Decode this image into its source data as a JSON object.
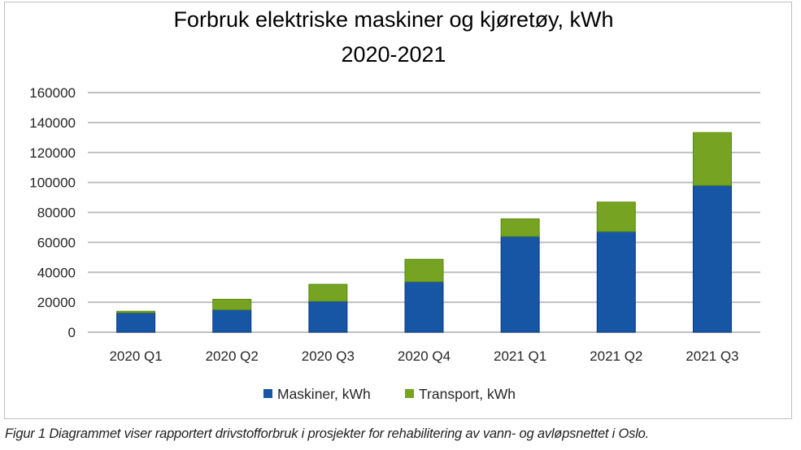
{
  "chart_data": {
    "type": "bar",
    "stacked": true,
    "title": "Forbruk elektriske maskiner og kjøretøy, kWh",
    "subtitle": "2020-2021",
    "xlabel": "",
    "ylabel": "",
    "ylim": [
      0,
      160000
    ],
    "yticks": [
      0,
      20000,
      40000,
      60000,
      80000,
      100000,
      120000,
      140000,
      160000
    ],
    "grid": true,
    "legend_placement": "bottom",
    "categories": [
      "2020 Q1",
      "2020 Q2",
      "2020 Q3",
      "2020 Q4",
      "2021 Q1",
      "2021 Q2",
      "2021 Q3"
    ],
    "series": [
      {
        "name": "Maskiner, kWh",
        "color": "#1755a5",
        "values": [
          13000,
          15000,
          20700,
          33700,
          64000,
          67200,
          98000
        ]
      },
      {
        "name": "Transport, kWh",
        "color": "#76a321",
        "values": [
          1000,
          7000,
          11300,
          15000,
          11700,
          19700,
          35300
        ]
      }
    ]
  },
  "caption": "Figur 1 Diagrammet viser rapportert drivstofforbruk i prosjekter for rehabilitering av vann- og avløpsnettet i Oslo."
}
